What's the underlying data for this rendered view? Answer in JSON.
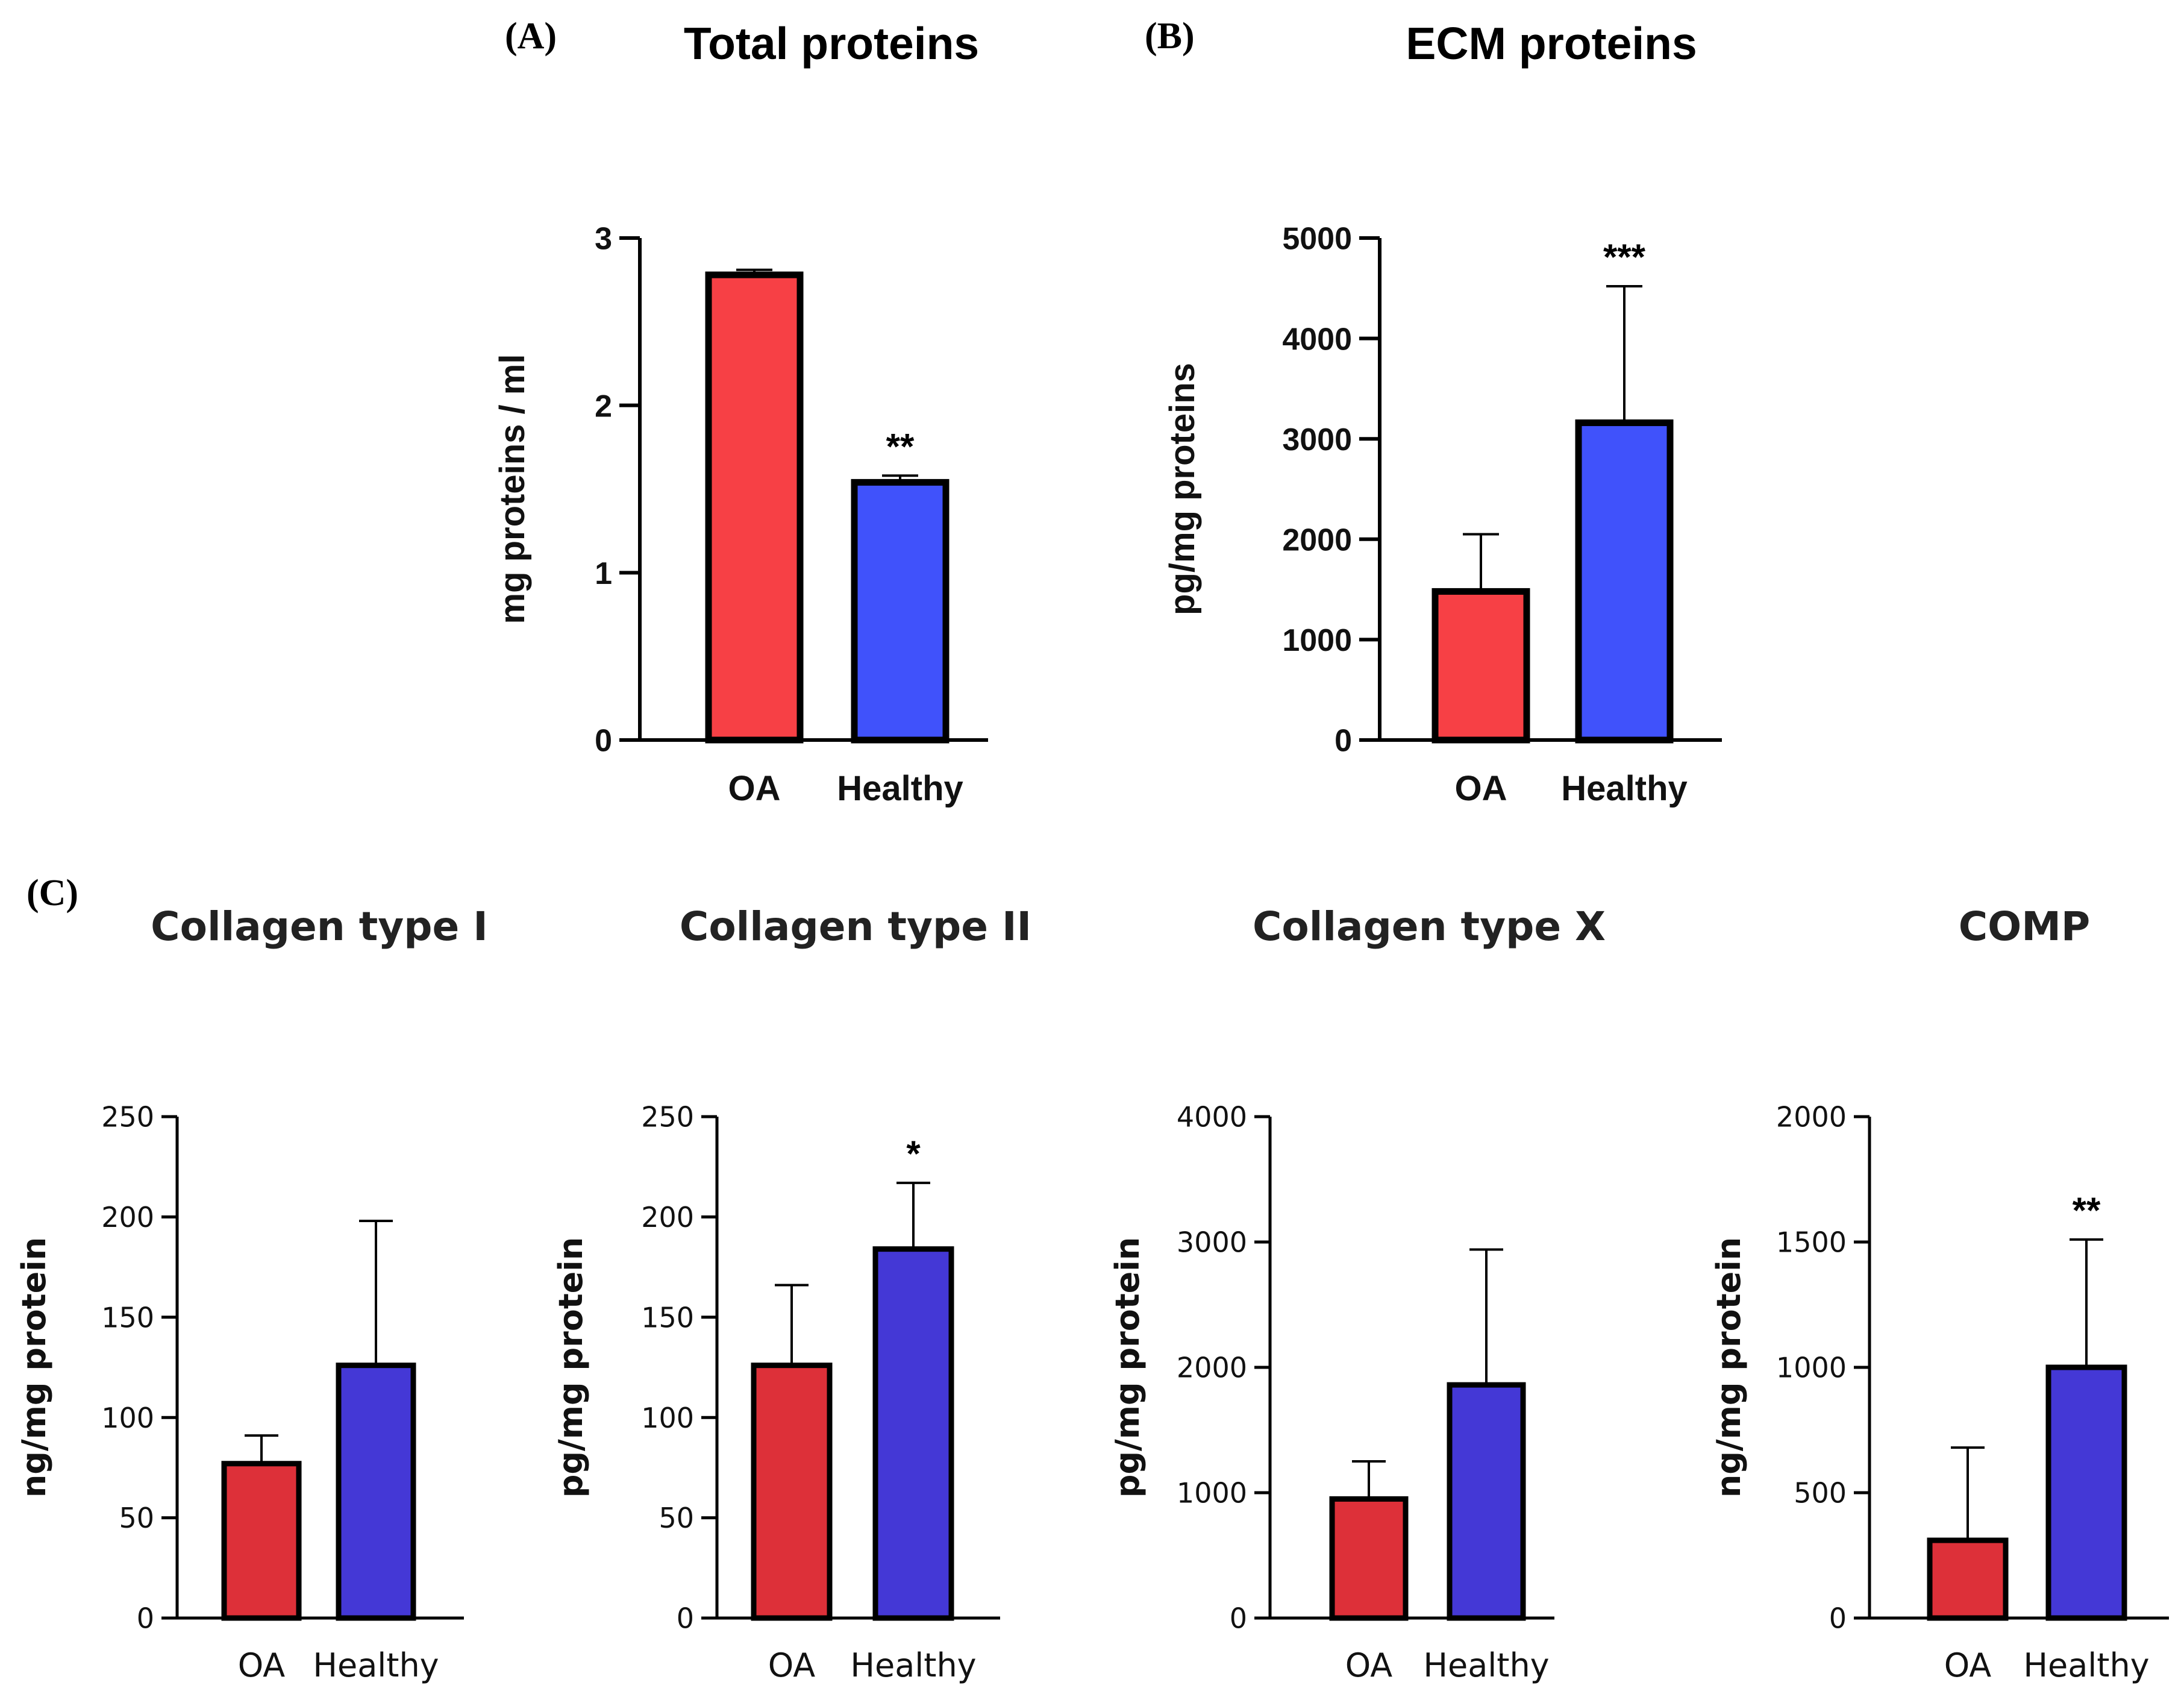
{
  "figure": {
    "panel_labels": {
      "a": "(A)",
      "b": "(B)",
      "c": "(C)"
    }
  },
  "chart_data": [
    {
      "id": "A",
      "type": "bar",
      "title": "Total proteins",
      "xlabel": "",
      "ylabel": "mg proteins / ml",
      "categories": [
        "OA",
        "Healthy"
      ],
      "values": [
        2.78,
        1.54
      ],
      "errors": [
        0.03,
        0.04
      ],
      "colors": [
        "#f74045",
        "#4052fb"
      ],
      "significance": [
        "",
        "**"
      ],
      "ylim": [
        0,
        3
      ],
      "yticks": [
        0,
        1,
        2,
        3
      ],
      "yticklabels": [
        "0",
        "1",
        "2",
        "3"
      ],
      "grid": false,
      "legend": "none"
    },
    {
      "id": "B",
      "type": "bar",
      "title": "ECM proteins",
      "xlabel": "",
      "ylabel": "pg/mg proteins",
      "categories": [
        "OA",
        "Healthy"
      ],
      "values": [
        1480,
        3160
      ],
      "errors": [
        570,
        1360
      ],
      "colors": [
        "#f74045",
        "#4052fb"
      ],
      "significance": [
        "",
        "***"
      ],
      "ylim": [
        0,
        5000
      ],
      "yticks": [
        0,
        1000,
        2000,
        3000,
        4000,
        5000
      ],
      "yticklabels": [
        "0",
        "1000",
        "2000",
        "3000",
        "4000",
        "5000"
      ],
      "grid": false,
      "legend": "none"
    },
    {
      "id": "C1",
      "type": "bar",
      "title": "Collagen type I",
      "xlabel": "",
      "ylabel": "ng/mg protein",
      "categories": [
        "OA",
        "Healthy"
      ],
      "values": [
        77,
        126
      ],
      "errors": [
        14,
        72
      ],
      "colors": [
        "#dd3039",
        "#4438d6"
      ],
      "significance": [
        "",
        ""
      ],
      "ylim": [
        0,
        250
      ],
      "yticks": [
        0,
        50,
        100,
        150,
        200,
        250
      ],
      "yticklabels": [
        "0",
        "50",
        "100",
        "150",
        "200",
        "250"
      ],
      "grid": false,
      "legend": "none"
    },
    {
      "id": "C2",
      "type": "bar",
      "title": "Collagen type II",
      "xlabel": "",
      "ylabel": "pg/mg protein",
      "categories": [
        "OA",
        "Healthy"
      ],
      "values": [
        126,
        184
      ],
      "errors": [
        40,
        33
      ],
      "colors": [
        "#dd3039",
        "#4438d6"
      ],
      "significance": [
        "",
        "*"
      ],
      "ylim": [
        0,
        250
      ],
      "yticks": [
        0,
        50,
        100,
        150,
        200,
        250
      ],
      "yticklabels": [
        "0",
        "50",
        "100",
        "150",
        "200",
        "250"
      ],
      "grid": false,
      "legend": "none"
    },
    {
      "id": "C3",
      "type": "bar",
      "title": "Collagen type X",
      "xlabel": "",
      "ylabel": "pg/mg protein",
      "categories": [
        "OA",
        "Healthy"
      ],
      "values": [
        950,
        1860
      ],
      "errors": [
        300,
        1080
      ],
      "colors": [
        "#dd3039",
        "#4438d6"
      ],
      "significance": [
        "",
        ""
      ],
      "ylim": [
        0,
        4000
      ],
      "yticks": [
        0,
        1000,
        2000,
        3000,
        4000
      ],
      "yticklabels": [
        "0",
        "1000",
        "2000",
        "3000",
        "4000"
      ],
      "grid": false,
      "legend": "none"
    },
    {
      "id": "C4",
      "type": "bar",
      "title": "COMP",
      "xlabel": "",
      "ylabel": "ng/mg protein",
      "categories": [
        "OA",
        "Healthy"
      ],
      "values": [
        310,
        1000
      ],
      "errors": [
        370,
        510
      ],
      "colors": [
        "#dd3039",
        "#4438d6"
      ],
      "significance": [
        "",
        "**"
      ],
      "ylim": [
        0,
        2000
      ],
      "yticks": [
        0,
        500,
        1000,
        1500,
        2000
      ],
      "yticklabels": [
        "0",
        "500",
        "1000",
        "1500",
        "2000"
      ],
      "grid": false,
      "legend": "none"
    }
  ]
}
